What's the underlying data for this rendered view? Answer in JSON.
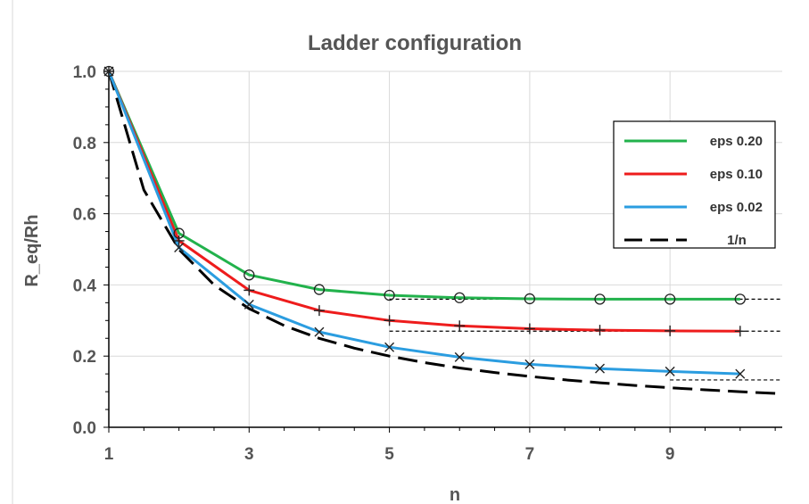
{
  "chart_data": {
    "type": "line",
    "title": "Ladder configuration",
    "xlabel": "n",
    "ylabel": "R_eq/Rh",
    "xlim": [
      1,
      10.6
    ],
    "ylim": [
      0,
      1
    ],
    "x_ticks": [
      1,
      3,
      5,
      7,
      9
    ],
    "x_tick_labels": [
      "1",
      "3",
      "5",
      "7",
      "9"
    ],
    "y_ticks": [
      0,
      0.2,
      0.4,
      0.6,
      0.8,
      1.0
    ],
    "y_tick_labels": [
      "0.0",
      "0.2",
      "0.4",
      "0.6",
      "0.8",
      "1.0"
    ],
    "grid": true,
    "legend_position": "top-right",
    "series": [
      {
        "name": "eps 0.20",
        "color": "#22b24c",
        "marker": "circle",
        "dash": "solid",
        "x": [
          1,
          2,
          3,
          4,
          5,
          6,
          7,
          8,
          9,
          10
        ],
        "y": [
          1.0,
          0.545,
          0.428,
          0.387,
          0.371,
          0.364,
          0.361,
          0.36,
          0.36,
          0.36
        ]
      },
      {
        "name": "eps 0.10",
        "color": "#ee1c1c",
        "marker": "plus",
        "dash": "solid",
        "x": [
          1,
          2,
          3,
          4,
          5,
          6,
          7,
          8,
          9,
          10
        ],
        "y": [
          1.0,
          0.524,
          0.385,
          0.328,
          0.3,
          0.285,
          0.277,
          0.273,
          0.271,
          0.27
        ]
      },
      {
        "name": "eps 0.02",
        "color": "#2b9de0",
        "marker": "x",
        "dash": "solid",
        "x": [
          1,
          2,
          3,
          4,
          5,
          6,
          7,
          8,
          9,
          10
        ],
        "y": [
          1.0,
          0.505,
          0.345,
          0.268,
          0.225,
          0.197,
          0.177,
          0.165,
          0.157,
          0.15
        ]
      },
      {
        "name": "1/n",
        "color": "#000000",
        "marker": "none",
        "dash": "long-dash",
        "x": [
          1,
          1.5,
          2,
          2.5,
          3,
          3.5,
          4,
          4.5,
          5,
          5.5,
          6,
          6.5,
          7,
          7.5,
          8,
          8.5,
          9,
          9.5,
          10,
          10.6
        ],
        "y": [
          1.0,
          0.6667,
          0.5,
          0.4,
          0.3333,
          0.2857,
          0.25,
          0.2222,
          0.2,
          0.1818,
          0.1667,
          0.1538,
          0.1429,
          0.1333,
          0.125,
          0.1176,
          0.1111,
          0.1053,
          0.1,
          0.0943
        ]
      }
    ],
    "reference_lines": [
      {
        "x_start": 5,
        "x_end": 10.6,
        "y": 0.36,
        "color": "#000000",
        "dash": "short-dash"
      },
      {
        "x_start": 5,
        "x_end": 10.6,
        "y": 0.27,
        "color": "#000000",
        "dash": "short-dash"
      },
      {
        "x_start": 9,
        "x_end": 10.6,
        "y": 0.133,
        "color": "#000000",
        "dash": "short-dash"
      }
    ]
  }
}
